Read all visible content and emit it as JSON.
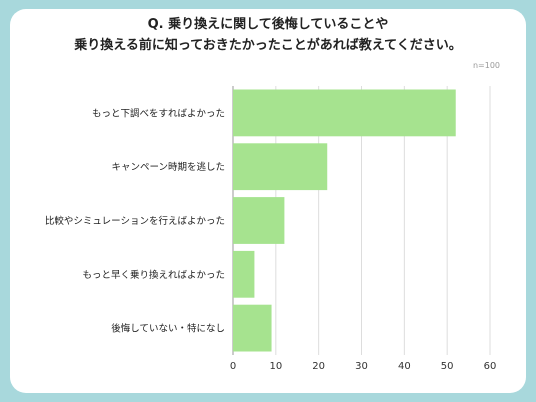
{
  "title": {
    "line1": "Q. 乗り換えに関して後悔していることや",
    "line2": "乗り換える前に知っておきたかったことがあれば教えてください。"
  },
  "sample_note": "n=100",
  "colors": {
    "bar": "#a6e38f",
    "background": "#a8d8dc",
    "grid": "#dddddd"
  },
  "chart_data": {
    "type": "bar",
    "orientation": "horizontal",
    "categories": [
      "もっと下調べをすればよかった",
      "キャンペーン時期を逃した",
      "比較やシミュレーションを行えばよかった",
      "もっと早く乗り換えればよかった",
      "後悔していない・特になし"
    ],
    "values": [
      52,
      22,
      12,
      5,
      9
    ],
    "xlim": [
      0,
      60
    ],
    "xticks": [
      0,
      10,
      20,
      30,
      40,
      50,
      60
    ],
    "grid": true
  }
}
